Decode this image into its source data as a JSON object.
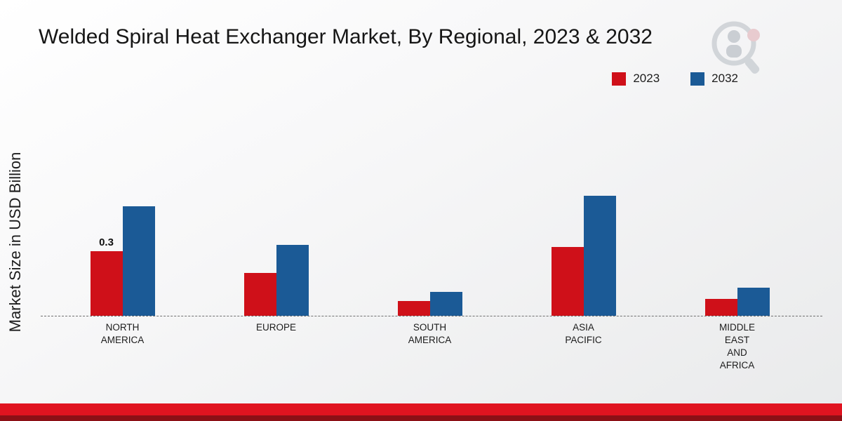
{
  "title": "Welded Spiral Heat Exchanger Market, By Regional, 2023 & 2032",
  "ylabel": "Market Size in USD Billion",
  "legend": [
    {
      "label": "2023",
      "color": "#cf1019"
    },
    {
      "label": "2032",
      "color": "#1b5a96"
    }
  ],
  "chart_data": {
    "type": "bar",
    "title": "Welded Spiral Heat Exchanger Market, By Regional, 2023 & 2032",
    "xlabel": "",
    "ylabel": "Market Size in USD Billion",
    "categories": [
      "NORTH\nAMERICA",
      "EUROPE",
      "SOUTH\nAMERICA",
      "ASIA\nPACIFIC",
      "MIDDLE\nEAST\nAND\nAFRICA"
    ],
    "series": [
      {
        "name": "2023",
        "color": "#cf1019",
        "values": [
          0.3,
          0.2,
          0.07,
          0.32,
          0.08
        ]
      },
      {
        "name": "2032",
        "color": "#1b5a96",
        "values": [
          0.51,
          0.33,
          0.11,
          0.56,
          0.13
        ]
      }
    ],
    "bar_labels": [
      {
        "series_index": 0,
        "category_index": 0,
        "text": "0.3"
      }
    ],
    "ylim": [
      0,
      0.6
    ],
    "grid": false,
    "baseline_style": "dashed",
    "legend_position": "top-right"
  },
  "footer": {
    "strip_red": "#e01420",
    "strip_dark_red": "#8c1016"
  }
}
